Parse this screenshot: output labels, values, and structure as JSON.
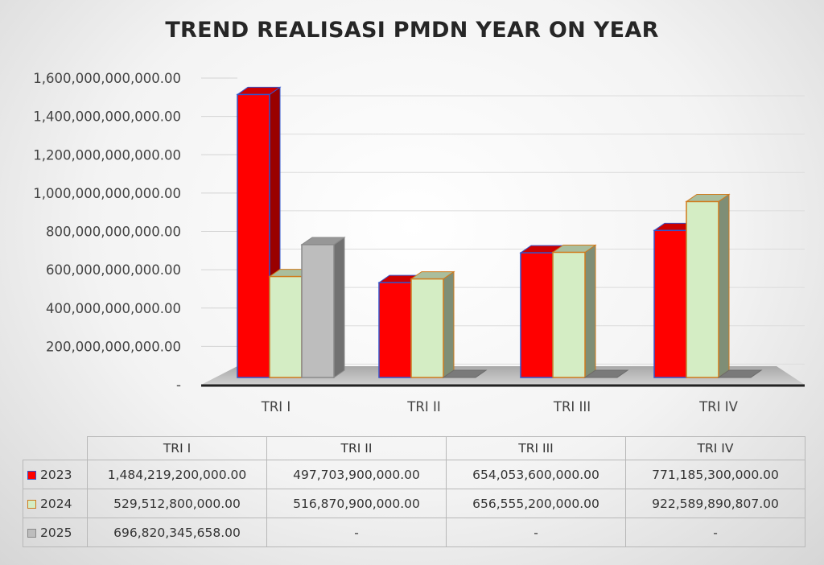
{
  "chart_data": {
    "type": "bar",
    "title": "TREND REALISASI PMDN YEAR ON YEAR",
    "categories": [
      "TRI I",
      "TRI II",
      "TRI III",
      "TRI IV"
    ],
    "y_ticks": [
      "-",
      "200,000,000,000.00",
      "400,000,000,000.00",
      "600,000,000,000.00",
      "800,000,000,000.00",
      "1,000,000,000,000.00",
      "1,200,000,000,000.00",
      "1,400,000,000,000.00",
      "1,600,000,000,000.00"
    ],
    "ylim": [
      0,
      1600000000000
    ],
    "grid": true,
    "legend": "table-below",
    "series": [
      {
        "name": "2023",
        "color": "#ff0000",
        "border": "#3355cc",
        "values": [
          1484219200000,
          497703900000,
          654053600000,
          771185300000
        ],
        "labels": [
          "1,484,219,200,000.00",
          "497,703,900,000.00",
          "654,053,600,000.00",
          "771,185,300,000.00"
        ]
      },
      {
        "name": "2024",
        "color": "#d4edc4",
        "border": "#d07a1c",
        "values": [
          529512800000,
          516870900000,
          656555200000,
          922589890807
        ],
        "labels": [
          "529,512,800,000.00",
          "516,870,900,000.00",
          "656,555,200,000.00",
          "922,589,890,807.00"
        ]
      },
      {
        "name": "2025",
        "color": "#bdbdbd",
        "border": "#8a8a8a",
        "values": [
          696820345658,
          null,
          null,
          null
        ],
        "labels": [
          "696,820,345,658.00",
          "-",
          "-",
          "-"
        ]
      }
    ]
  }
}
